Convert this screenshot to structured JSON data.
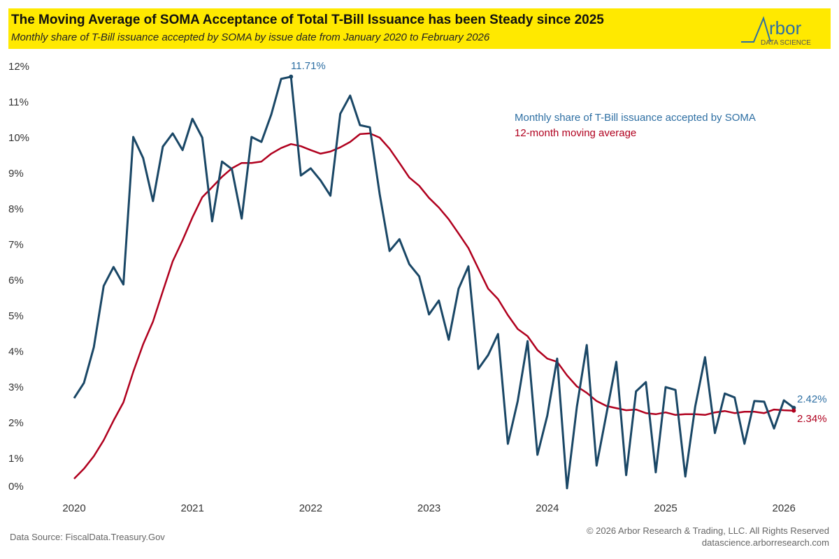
{
  "header": {
    "title": "The Moving Average of SOMA Acceptance of Total T-Bill Issuance has been Steady since 2025",
    "subtitle": "Monthly share of T-Bill issuance accepted by SOMA by issue date from January 2020 to February 2026",
    "logo_text": "Arbor",
    "logo_subtext": "DATA SCIENCE"
  },
  "footer": {
    "source": "Data Source: FiscalData.Treasury.Gov",
    "copyright": "© 2026 Arbor Research & Trading, LLC. All Rights Reserved",
    "website": "datascience.arborresearch.com"
  },
  "colors": {
    "monthly": "#1a4766",
    "monthly_text": "#2e6fa3",
    "moving_average": "#b0001e",
    "banner": "#ffe900"
  },
  "chart_data": {
    "type": "line",
    "title": "The Moving Average of SOMA Acceptance of Total T-Bill Issuance has been Steady since 2025",
    "xlabel": "",
    "ylabel": "",
    "x_start": "2020-01",
    "x_end": "2026-02",
    "x_ticks": [
      "2020",
      "2021",
      "2022",
      "2023",
      "2024",
      "2025",
      "2026"
    ],
    "y_ticks": [
      "0%",
      "1%",
      "2%",
      "3%",
      "4%",
      "5%",
      "6%",
      "7%",
      "8%",
      "9%",
      "10%",
      "11%",
      "12%"
    ],
    "ylim": [
      0,
      12
    ],
    "grid": false,
    "legend_position": "top-right",
    "series": [
      {
        "name": "Monthly share of T-Bill issuance accepted by SOMA",
        "values": [
          2.69,
          3.12,
          4.12,
          5.84,
          6.37,
          5.88,
          10.02,
          9.43,
          8.22,
          9.75,
          10.12,
          9.65,
          10.53,
          10.0,
          7.65,
          9.33,
          9.12,
          7.73,
          10.02,
          9.88,
          10.65,
          11.65,
          11.71,
          8.94,
          9.14,
          8.8,
          8.37,
          10.67,
          11.18,
          10.35,
          10.29,
          8.41,
          6.82,
          7.15,
          6.45,
          6.11,
          5.04,
          5.43,
          4.33,
          5.76,
          6.39,
          3.51,
          3.9,
          4.49,
          1.41,
          2.61,
          4.29,
          1.1,
          2.2,
          3.8,
          0.16,
          2.45,
          4.18,
          0.8,
          2.25,
          3.71,
          0.53,
          2.88,
          3.14,
          0.61,
          3.0,
          2.92,
          0.49,
          2.45,
          3.84,
          1.71,
          2.82,
          2.71,
          1.41,
          2.61,
          2.59,
          1.84,
          2.63,
          2.42
        ]
      },
      {
        "name": "12-month moving average",
        "values": [
          0.43,
          0.71,
          1.06,
          1.51,
          2.06,
          2.57,
          3.43,
          4.2,
          4.84,
          5.69,
          6.53,
          7.12,
          7.76,
          8.33,
          8.61,
          8.9,
          9.14,
          9.29,
          9.29,
          9.33,
          9.55,
          9.71,
          9.82,
          9.76,
          9.65,
          9.55,
          9.61,
          9.73,
          9.88,
          10.1,
          10.12,
          10.0,
          9.69,
          9.29,
          8.88,
          8.65,
          8.31,
          8.04,
          7.71,
          7.31,
          6.9,
          6.33,
          5.76,
          5.47,
          5.02,
          4.63,
          4.43,
          4.04,
          3.8,
          3.71,
          3.33,
          3.02,
          2.84,
          2.61,
          2.47,
          2.41,
          2.35,
          2.37,
          2.27,
          2.24,
          2.29,
          2.22,
          2.24,
          2.24,
          2.22,
          2.29,
          2.33,
          2.27,
          2.31,
          2.31,
          2.27,
          2.37,
          2.35,
          2.34
        ]
      }
    ],
    "annotations": {
      "peak": "11.71%",
      "last_monthly": "2.42%",
      "last_average": "2.34%"
    }
  }
}
